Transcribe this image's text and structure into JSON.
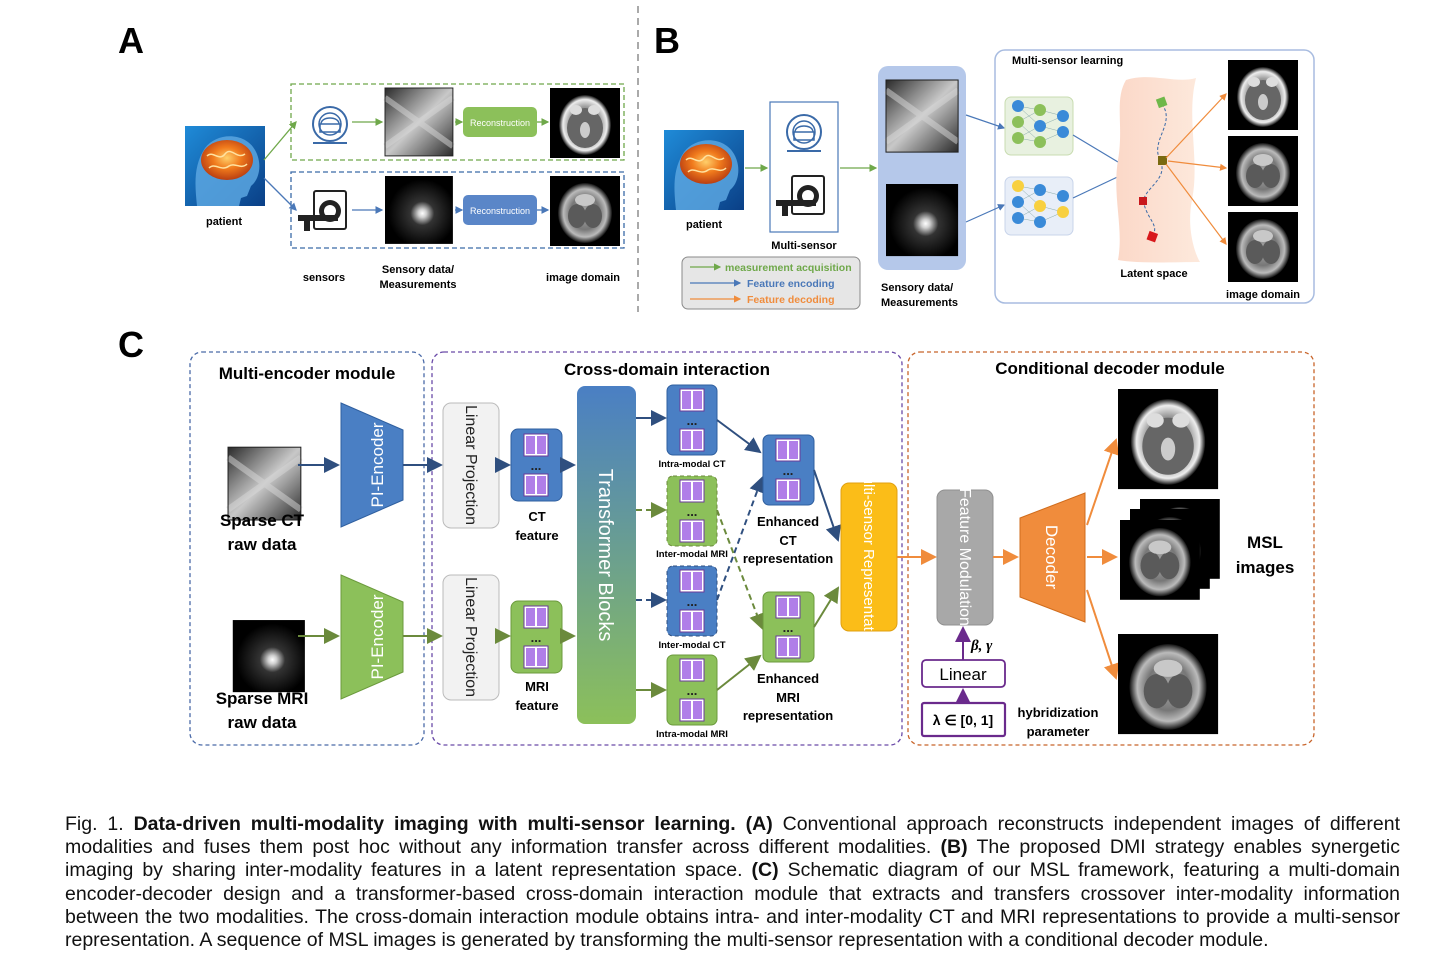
{
  "panels": {
    "a": "A",
    "b": "B",
    "c": "C"
  },
  "panel_a": {
    "patient": "patient",
    "reconstruction": "Reconstruction",
    "sensors": "sensors",
    "sensory_data_line1": "Sensory data/",
    "sensory_data_line2": "Measurements",
    "image_domain": "image domain"
  },
  "panel_b": {
    "patient": "patient",
    "multi_sensor": "Multi-sensor",
    "legend": {
      "acquisition": "measurement acquisition",
      "encoding": "Feature encoding",
      "decoding": "Feature decoding"
    },
    "sensory_data_line1": "Sensory data/",
    "sensory_data_line2": "Measurements",
    "msl_title": "Multi-sensor learning",
    "latent_space": "Latent space",
    "image_domain": "image domain"
  },
  "panel_c": {
    "multi_encoder_title": "Multi-encoder module",
    "cross_domain_title": "Cross-domain interaction",
    "decoder_title": "Conditional decoder module",
    "sparse_ct_line1": "Sparse CT",
    "sparse_ct_line2": "raw data",
    "sparse_mri_line1": "Sparse MRI",
    "sparse_mri_line2": "raw data",
    "pi_encoder": "PI-Encoder",
    "linear_projection": "Linear Projection",
    "ct_feature_line1": "CT",
    "ct_feature_line2": "feature",
    "mri_feature_line1": "MRI",
    "mri_feature_line2": "feature",
    "transformer_blocks": "Transformer Blocks",
    "intra_modal_ct": "Intra-modal CT",
    "inter_modal_mri": "Inter-modal MRI",
    "inter_modal_ct": "Inter-modal CT",
    "intra_modal_mri": "Intra-modal MRI",
    "enhanced_ct": [
      "Enhanced",
      "CT",
      "representation"
    ],
    "enhanced_mri": [
      "Enhanced",
      "MRI",
      "representation"
    ],
    "multi_sensor_rep": "Multi-sensor Representation",
    "feature_modulation": "Feature Modulation",
    "beta_gamma": "β, γ",
    "linear": "Linear",
    "lambda": "λ ∈ [0, 1]",
    "hybridization_line1": "hybridization",
    "hybridization_line2": "parameter",
    "decoder": "Decoder",
    "msl_images_line1": "MSL",
    "msl_images_line2": "images"
  },
  "caption": {
    "prefix": "Fig. 1. ",
    "title": "Data-driven multi-modality imaging with multi-sensor learning.",
    "a_label": "(A)",
    "a_text": " Conventional approach reconstructs independent images of different modalities and fuses them post hoc without any information transfer across different modalities. ",
    "b_label": "(B)",
    "b_text": " The proposed DMI strategy enables synergetic imaging by sharing inter-modality features in a latent representation space. ",
    "c_label": "(C)",
    "c_text": " Schematic diagram of our MSL framework, featuring a multi-domain encoder-decoder design and a transformer-based cross-domain interaction module that extracts and transfers crossover inter-modality information between the two modalities. The cross-domain interaction module obtains intra- and inter-modality CT and MRI representations to provide a multi-sensor representation. A sequence of MSL images is generated by transforming the multi-sensor representation with a conditional decoder module."
  },
  "colors": {
    "blue": "#4a78b8",
    "green": "#8cb456",
    "purple": "#b07ee8",
    "orange": "#f08c3c",
    "yellow": "#fbbd18",
    "grey": "#a8a8a8",
    "dark_purple": "#6a2a8c"
  }
}
